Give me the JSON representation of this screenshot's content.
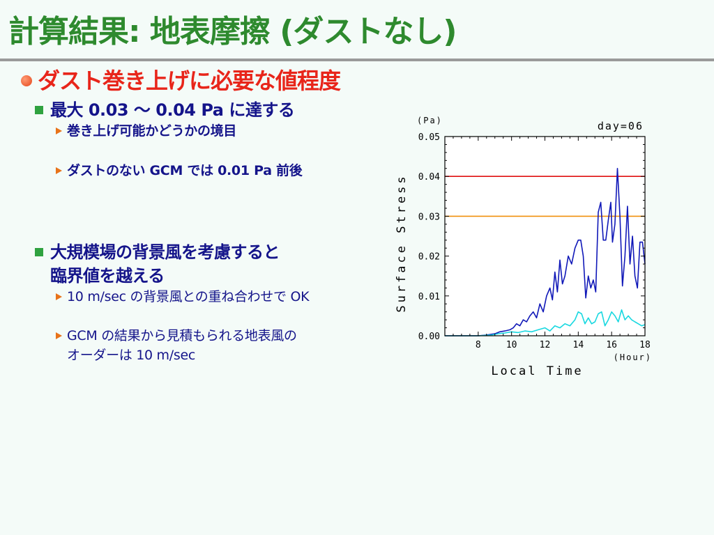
{
  "slide": {
    "title": "計算結果: 地表摩擦 (ダストなし)",
    "bullet1": "ダスト巻き上げに必要な値程度",
    "bullet2": "最大 0.03 〜 0.04 Pa に達する",
    "bullet2_sub1": "巻き上げ可能かどうかの境目",
    "bullet2_sub2": "ダストのない GCM では 0.01 Pa 前後",
    "bullet3_line1": "大規模場の背景風を考慮すると",
    "bullet3_line2": "臨界値を越える",
    "bullet3_sub1": "10 m/sec の背景風との重ね合わせで OK",
    "bullet3_sub2_line1": "GCM の結果から見積もられる地表風の",
    "bullet3_sub2_line2": "オーダーは 10 m/sec"
  },
  "chart_data": {
    "type": "line",
    "title": "day=06",
    "xlabel": "Local Time",
    "xunit": "(Hour)",
    "ylabel": "Surface Stress",
    "yunit": "(Pa)",
    "xlim": [
      6,
      18
    ],
    "ylim": [
      0,
      0.05
    ],
    "xticks": [
      8,
      10,
      12,
      14,
      16,
      18
    ],
    "yticks": [
      0.0,
      0.01,
      0.02,
      0.03,
      0.04,
      0.05
    ],
    "ytick_labels": [
      "0.00",
      "0.01",
      "0.02",
      "0.03",
      "0.04",
      "0.05"
    ],
    "hlines": [
      {
        "y": 0.04,
        "color": "#e01010"
      },
      {
        "y": 0.03,
        "color": "#f0900a"
      }
    ],
    "series": [
      {
        "color": "#1018b8",
        "x": [
          6,
          7,
          8,
          8.5,
          9,
          9.3,
          9.6,
          9.9,
          10.1,
          10.3,
          10.5,
          10.7,
          10.9,
          11.1,
          11.3,
          11.5,
          11.7,
          11.9,
          12.1,
          12.3,
          12.45,
          12.6,
          12.75,
          12.9,
          13.05,
          13.2,
          13.4,
          13.6,
          13.8,
          14,
          14.15,
          14.3,
          14.45,
          14.6,
          14.75,
          14.9,
          15.05,
          15.2,
          15.35,
          15.5,
          15.65,
          15.8,
          15.95,
          16.05,
          16.2,
          16.35,
          16.5,
          16.65,
          16.8,
          16.95,
          17.1,
          17.25,
          17.4,
          17.55,
          17.7,
          17.85,
          18
        ],
        "y": [
          0.0,
          0.0,
          0.0,
          0.0002,
          0.0005,
          0.001,
          0.0012,
          0.0015,
          0.002,
          0.003,
          0.0025,
          0.004,
          0.0035,
          0.005,
          0.006,
          0.0045,
          0.008,
          0.006,
          0.01,
          0.012,
          0.009,
          0.016,
          0.011,
          0.019,
          0.013,
          0.015,
          0.02,
          0.018,
          0.022,
          0.024,
          0.024,
          0.02,
          0.0095,
          0.015,
          0.012,
          0.014,
          0.011,
          0.031,
          0.0335,
          0.024,
          0.024,
          0.029,
          0.0335,
          0.0235,
          0.028,
          0.042,
          0.03,
          0.0125,
          0.02,
          0.0325,
          0.018,
          0.025,
          0.015,
          0.012,
          0.0235,
          0.0235,
          0.018
        ]
      },
      {
        "color": "#18d8e0",
        "x": [
          6,
          8,
          8.8,
          9.2,
          9.6,
          10,
          10.4,
          10.8,
          11.2,
          11.6,
          12,
          12.3,
          12.6,
          12.9,
          13.2,
          13.5,
          13.8,
          14,
          14.2,
          14.4,
          14.6,
          14.8,
          15,
          15.2,
          15.4,
          15.6,
          15.8,
          16,
          16.2,
          16.4,
          16.6,
          16.8,
          17,
          17.2,
          17.4,
          17.6,
          17.8,
          18
        ],
        "y": [
          0.0,
          0.0,
          0.0002,
          0.0005,
          0.0007,
          0.001,
          0.0008,
          0.0012,
          0.001,
          0.0015,
          0.002,
          0.0012,
          0.0025,
          0.002,
          0.003,
          0.0025,
          0.004,
          0.006,
          0.0055,
          0.003,
          0.0045,
          0.003,
          0.0035,
          0.0055,
          0.006,
          0.0025,
          0.004,
          0.006,
          0.005,
          0.0035,
          0.0065,
          0.004,
          0.005,
          0.004,
          0.0035,
          0.003,
          0.0025,
          0.0028
        ]
      }
    ]
  }
}
